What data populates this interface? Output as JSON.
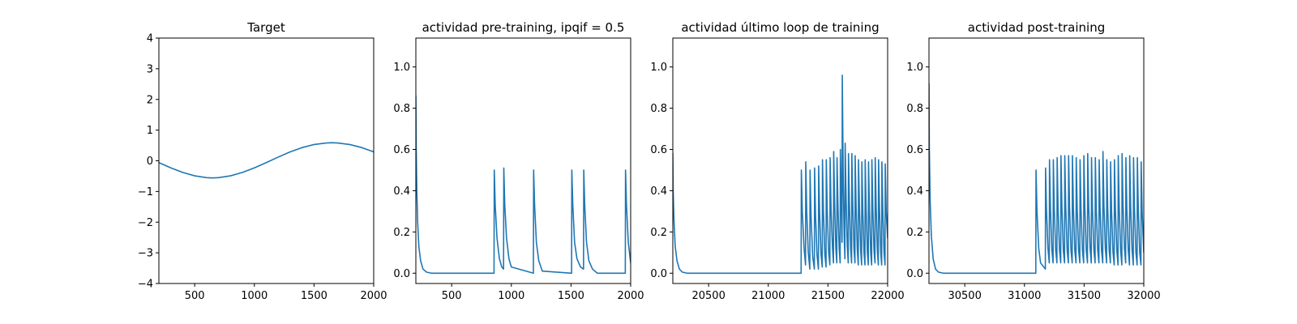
{
  "style": {
    "line_color": "#1f77b4"
  },
  "chart_data": [
    {
      "type": "line",
      "title": "Target",
      "xlim": [
        200,
        2000
      ],
      "ylim": [
        -4,
        4
      ],
      "xticks": [
        500,
        1000,
        1500,
        2000
      ],
      "xtick_labels": [
        "500",
        "1000",
        "1500",
        "2000"
      ],
      "yticks": [
        -4,
        -3,
        -2,
        -1,
        0,
        1,
        2,
        3,
        4
      ],
      "ytick_labels": [
        "−4",
        "−3",
        "−2",
        "−1",
        "0",
        "1",
        "2",
        "3",
        "4"
      ],
      "series": [
        {
          "x": [
            200,
            300,
            400,
            500,
            600,
            650,
            700,
            800,
            900,
            1000,
            1100,
            1200,
            1300,
            1400,
            1500,
            1600,
            1650,
            1700,
            1800,
            1900,
            2000
          ],
          "y": [
            -0.06,
            -0.23,
            -0.38,
            -0.49,
            -0.55,
            -0.56,
            -0.55,
            -0.49,
            -0.38,
            -0.23,
            -0.06,
            0.12,
            0.29,
            0.43,
            0.53,
            0.58,
            0.59,
            0.58,
            0.53,
            0.43,
            0.29
          ]
        }
      ]
    },
    {
      "type": "line",
      "title": "actividad pre-training, ipqif = 0.5",
      "xlim": [
        200,
        2000
      ],
      "ylim": [
        -0.05,
        1.14
      ],
      "xticks": [
        500,
        1000,
        1500,
        2000
      ],
      "xtick_labels": [
        "500",
        "1000",
        "1500",
        "2000"
      ],
      "yticks": [
        0,
        0.2,
        0.4,
        0.6,
        0.8,
        1.0
      ],
      "ytick_labels": [
        "0.0",
        "0.2",
        "0.4",
        "0.6",
        "0.8",
        "1.0"
      ],
      "series": [
        {
          "x": [
            200,
            203,
            208,
            215,
            225,
            240,
            260,
            290,
            330,
            855,
            857,
            865,
            880,
            900,
            920,
            935,
            937,
            945,
            960,
            980,
            1000,
            1185,
            1187,
            1195,
            1210,
            1230,
            1260,
            1505,
            1507,
            1515,
            1530,
            1550,
            1580,
            1605,
            1607,
            1615,
            1630,
            1650,
            1680,
            1720,
            1955,
            1957,
            1965,
            1980,
            2000
          ],
          "y": [
            0.86,
            0.6,
            0.4,
            0.25,
            0.13,
            0.06,
            0.02,
            0.005,
            0.0,
            0.0,
            0.5,
            0.33,
            0.17,
            0.07,
            0.03,
            0.02,
            0.51,
            0.33,
            0.17,
            0.07,
            0.03,
            0.0,
            0.5,
            0.33,
            0.15,
            0.06,
            0.01,
            0.0,
            0.5,
            0.33,
            0.15,
            0.07,
            0.03,
            0.02,
            0.5,
            0.33,
            0.15,
            0.06,
            0.02,
            0.0,
            0.0,
            0.5,
            0.33,
            0.15,
            0.05
          ]
        }
      ]
    },
    {
      "type": "line",
      "title": "actividad último loop de training",
      "xlim": [
        20200,
        22000
      ],
      "ylim": [
        -0.05,
        1.14
      ],
      "xticks": [
        20500,
        21000,
        21500,
        22000
      ],
      "xtick_labels": [
        "20500",
        "21000",
        "21500",
        "22000"
      ],
      "yticks": [
        0,
        0.2,
        0.4,
        0.6,
        0.8,
        1.0
      ],
      "ytick_labels": [
        "0.0",
        "0.2",
        "0.4",
        "0.6",
        "0.8",
        "1.0"
      ],
      "series": [
        {
          "x": [
            20200,
            20203,
            20210,
            20220,
            20235,
            20255,
            20280,
            20320,
            21275,
            21277,
            21285,
            21300,
            21312,
            21314,
            21322,
            21335,
            21348,
            21350,
            21358,
            21372,
            21386,
            21388,
            21396,
            21408,
            21420,
            21422,
            21430,
            21442,
            21452,
            21454,
            21462,
            21474,
            21484,
            21486,
            21494,
            21506,
            21516,
            21518,
            21526,
            21538,
            21546,
            21548,
            21556,
            21566,
            21574,
            21576,
            21584,
            21594,
            21602,
            21604,
            21612,
            21618,
            21620,
            21628,
            21636,
            21642,
            21644,
            21652,
            21662,
            21670,
            21672,
            21680,
            21690,
            21698,
            21700,
            21708,
            21718,
            21726,
            21728,
            21736,
            21746,
            21754,
            21756,
            21764,
            21774,
            21782,
            21784,
            21792,
            21802,
            21810,
            21812,
            21820,
            21830,
            21838,
            21840,
            21848,
            21858,
            21866,
            21868,
            21876,
            21886,
            21894,
            21896,
            21904,
            21914,
            21922,
            21924,
            21932,
            21942,
            21950,
            21952,
            21960,
            21970,
            21978,
            21980,
            21988,
            22000
          ],
          "y": [
            0.58,
            0.4,
            0.25,
            0.13,
            0.06,
            0.02,
            0.005,
            0.0,
            0.0,
            0.5,
            0.3,
            0.12,
            0.04,
            0.54,
            0.3,
            0.1,
            0.02,
            0.5,
            0.28,
            0.08,
            0.02,
            0.51,
            0.28,
            0.09,
            0.02,
            0.52,
            0.29,
            0.09,
            0.03,
            0.55,
            0.3,
            0.09,
            0.03,
            0.55,
            0.3,
            0.1,
            0.04,
            0.56,
            0.31,
            0.12,
            0.05,
            0.59,
            0.34,
            0.12,
            0.05,
            0.56,
            0.32,
            0.12,
            0.05,
            0.6,
            0.35,
            0.15,
            0.96,
            0.45,
            0.18,
            0.07,
            0.63,
            0.36,
            0.13,
            0.05,
            0.58,
            0.33,
            0.12,
            0.05,
            0.58,
            0.33,
            0.12,
            0.05,
            0.57,
            0.32,
            0.11,
            0.04,
            0.55,
            0.31,
            0.11,
            0.04,
            0.54,
            0.3,
            0.1,
            0.04,
            0.55,
            0.31,
            0.1,
            0.04,
            0.54,
            0.3,
            0.1,
            0.04,
            0.55,
            0.31,
            0.11,
            0.05,
            0.56,
            0.32,
            0.11,
            0.04,
            0.55,
            0.31,
            0.1,
            0.04,
            0.54,
            0.3,
            0.1,
            0.04,
            0.53,
            0.3,
            0.17
          ]
        }
      ]
    },
    {
      "type": "line",
      "title": "actividad post-training",
      "xlim": [
        30200,
        32000
      ],
      "ylim": [
        -0.05,
        1.14
      ],
      "xticks": [
        30500,
        31000,
        31500,
        32000
      ],
      "xtick_labels": [
        "30500",
        "31000",
        "31500",
        "32000"
      ],
      "yticks": [
        0,
        0.2,
        0.4,
        0.6,
        0.8,
        1.0
      ],
      "ytick_labels": [
        "0.0",
        "0.2",
        "0.4",
        "0.6",
        "0.8",
        "1.0"
      ],
      "series": [
        {
          "x": [
            30200,
            30203,
            30210,
            30220,
            30235,
            30255,
            30280,
            30320,
            31095,
            31097,
            31105,
            31120,
            31135,
            31175,
            31177,
            31185,
            31197,
            31208,
            31210,
            31218,
            31230,
            31240,
            31242,
            31250,
            31262,
            31272,
            31274,
            31282,
            31294,
            31304,
            31306,
            31314,
            31326,
            31336,
            31338,
            31346,
            31358,
            31368,
            31370,
            31378,
            31390,
            31400,
            31402,
            31410,
            31422,
            31432,
            31434,
            31442,
            31454,
            31464,
            31466,
            31474,
            31486,
            31496,
            31498,
            31506,
            31518,
            31528,
            31530,
            31538,
            31550,
            31560,
            31562,
            31570,
            31582,
            31592,
            31594,
            31602,
            31614,
            31624,
            31626,
            31634,
            31646,
            31656,
            31658,
            31666,
            31678,
            31688,
            31690,
            31698,
            31710,
            31720,
            31722,
            31730,
            31742,
            31752,
            31754,
            31762,
            31774,
            31784,
            31786,
            31794,
            31806,
            31816,
            31818,
            31826,
            31838,
            31848,
            31850,
            31858,
            31870,
            31880,
            31882,
            31890,
            31902,
            31912,
            31914,
            31922,
            31934,
            31944,
            31946,
            31954,
            31966,
            31976,
            31978,
            31986,
            32000
          ],
          "y": [
            0.92,
            0.6,
            0.35,
            0.18,
            0.07,
            0.02,
            0.005,
            0.0,
            0.0,
            0.5,
            0.3,
            0.12,
            0.05,
            0.02,
            0.51,
            0.3,
            0.12,
            0.05,
            0.55,
            0.31,
            0.11,
            0.05,
            0.55,
            0.31,
            0.11,
            0.05,
            0.56,
            0.31,
            0.11,
            0.05,
            0.57,
            0.32,
            0.11,
            0.05,
            0.57,
            0.32,
            0.11,
            0.05,
            0.57,
            0.32,
            0.11,
            0.05,
            0.57,
            0.32,
            0.11,
            0.05,
            0.56,
            0.31,
            0.11,
            0.05,
            0.55,
            0.31,
            0.11,
            0.05,
            0.57,
            0.32,
            0.11,
            0.05,
            0.58,
            0.33,
            0.12,
            0.05,
            0.56,
            0.31,
            0.11,
            0.05,
            0.56,
            0.31,
            0.11,
            0.05,
            0.55,
            0.31,
            0.11,
            0.05,
            0.59,
            0.33,
            0.12,
            0.05,
            0.55,
            0.31,
            0.11,
            0.05,
            0.54,
            0.3,
            0.1,
            0.04,
            0.55,
            0.31,
            0.11,
            0.04,
            0.57,
            0.32,
            0.11,
            0.04,
            0.58,
            0.33,
            0.12,
            0.05,
            0.56,
            0.31,
            0.11,
            0.04,
            0.57,
            0.32,
            0.11,
            0.04,
            0.56,
            0.31,
            0.1,
            0.04,
            0.56,
            0.31,
            0.1,
            0.04,
            0.54,
            0.3,
            0.1
          ]
        }
      ]
    }
  ]
}
